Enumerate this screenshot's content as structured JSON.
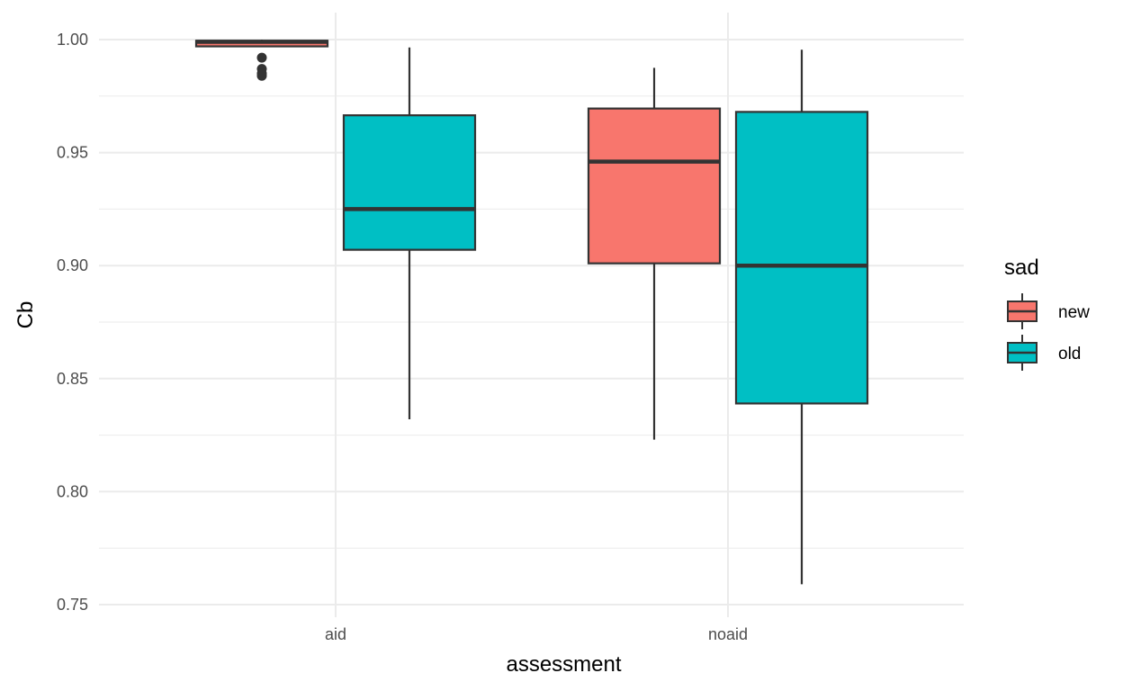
{
  "chart_data": {
    "type": "boxplot",
    "title": "",
    "xlabel": "assessment",
    "ylabel": "Cb",
    "categories": [
      "aid",
      "noaid"
    ],
    "ylim": [
      0.74,
      1.003
    ],
    "yticks": [
      0.75,
      0.8,
      0.85,
      0.9,
      0.95,
      1.0
    ],
    "ytick_labels": [
      "0.75",
      "0.80",
      "0.85",
      "0.90",
      "0.95",
      "1.00"
    ],
    "grid": true,
    "legend": {
      "title": "sad",
      "placement": "right"
    },
    "groups": [
      {
        "name": "new",
        "color": "#F8766D"
      },
      {
        "name": "old",
        "color": "#00BFC4"
      }
    ],
    "boxes": [
      {
        "category": "aid",
        "group": "new",
        "lower_whisker": 0.997,
        "q1": 0.997,
        "median": 0.999,
        "q3": 0.9995,
        "upper_whisker": 1.0,
        "outliers": [
          0.992,
          0.987,
          0.985,
          0.984
        ]
      },
      {
        "category": "aid",
        "group": "old",
        "lower_whisker": 0.832,
        "q1": 0.907,
        "median": 0.925,
        "q3": 0.9665,
        "upper_whisker": 0.9965,
        "outliers": []
      },
      {
        "category": "noaid",
        "group": "new",
        "lower_whisker": 0.823,
        "q1": 0.901,
        "median": 0.946,
        "q3": 0.9695,
        "upper_whisker": 0.9875,
        "outliers": []
      },
      {
        "category": "noaid",
        "group": "old",
        "lower_whisker": 0.759,
        "q1": 0.839,
        "median": 0.9,
        "q3": 0.968,
        "upper_whisker": 0.9955,
        "outliers": []
      }
    ]
  }
}
